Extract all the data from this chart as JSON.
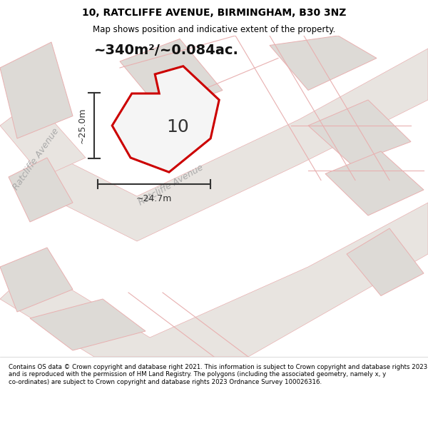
{
  "title_line1": "10, RATCLIFFE AVENUE, BIRMINGHAM, B30 3NZ",
  "title_line2": "Map shows position and indicative extent of the property.",
  "area_label": "~340m²/~0.084ac.",
  "property_number": "10",
  "dim_height": "~25.0m",
  "dim_width": "~24.7m",
  "street_label1": "Ratcliffe Avenue",
  "street_label2": "Ratcliffe Avenue",
  "footer": "Contains OS data © Crown copyright and database right 2021. This information is subject to Crown copyright and database rights 2023 and is reproduced with the permission of HM Land Registry. The polygons (including the associated geometry, namely x, y co-ordinates) are subject to Crown copyright and database rights 2023 Ordnance Survey 100026316.",
  "bg_color": "#f0eeec",
  "road_fill": "#e8e4e0",
  "road_stroke": "#e8b0b0",
  "building_fill": "#dddad6",
  "building_stroke": "#e8b0b0",
  "property_stroke": "#cc0000",
  "property_fill": "#f5f5f5",
  "dim_color": "#333333",
  "title_bg": "#ffffff",
  "footer_bg": "#ffffff"
}
